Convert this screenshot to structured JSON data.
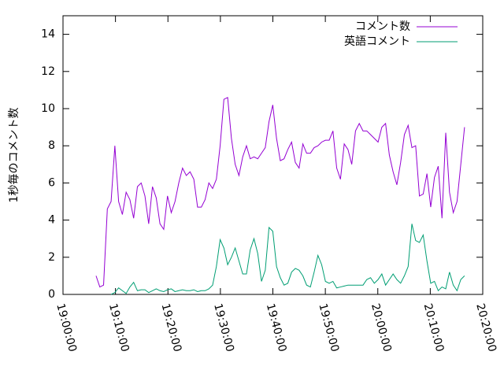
{
  "chart_data": {
    "type": "line",
    "ylabel": "1秒毎のコメント数",
    "x": [
      "19:06:18",
      "19:07:01",
      "19:07:44",
      "19:08:27",
      "19:09:10",
      "19:09:53",
      "19:10:36",
      "19:11:19",
      "19:12:02",
      "19:12:45",
      "19:13:28",
      "19:14:11",
      "19:14:54",
      "19:15:37",
      "19:16:20",
      "19:17:03",
      "19:17:46",
      "19:18:29",
      "19:19:12",
      "19:19:55",
      "19:20:38",
      "19:21:21",
      "19:22:04",
      "19:22:47",
      "19:23:30",
      "19:24:13",
      "19:24:56",
      "19:25:39",
      "19:26:22",
      "19:27:05",
      "19:27:48",
      "19:28:31",
      "19:29:14",
      "19:29:57",
      "19:30:40",
      "19:31:23",
      "19:32:06",
      "19:32:49",
      "19:33:32",
      "19:34:15",
      "19:34:58",
      "19:35:41",
      "19:36:24",
      "19:37:07",
      "19:37:50",
      "19:38:33",
      "19:39:16",
      "19:39:59",
      "19:40:42",
      "19:41:25",
      "19:42:08",
      "19:42:51",
      "19:43:34",
      "19:44:17",
      "19:45:00",
      "19:45:43",
      "19:46:26",
      "19:47:09",
      "19:47:52",
      "19:48:35",
      "19:49:18",
      "19:50:01",
      "19:50:44",
      "19:51:27",
      "19:52:10",
      "19:52:53",
      "19:53:36",
      "19:54:19",
      "19:55:02",
      "19:55:45",
      "19:56:28",
      "19:57:11",
      "19:57:54",
      "19:58:37",
      "19:59:20",
      "20:00:03",
      "20:00:46",
      "20:01:29",
      "20:02:12",
      "20:02:55",
      "20:03:38",
      "20:04:21",
      "20:05:04",
      "20:05:47",
      "20:06:30",
      "20:07:13",
      "20:07:56",
      "20:08:39",
      "20:09:22",
      "20:10:05",
      "20:10:48",
      "20:11:31",
      "20:12:14",
      "20:12:57",
      "20:13:40",
      "20:14:23",
      "20:15:06",
      "20:15:49",
      "20:16:32"
    ],
    "series": [
      {
        "name": "コメント数",
        "color": "#9400d3",
        "values": [
          1.0,
          0.4,
          0.5,
          4.6,
          5.0,
          8.0,
          5.0,
          4.3,
          5.5,
          5.1,
          4.1,
          5.8,
          6.0,
          5.3,
          3.8,
          5.8,
          5.2,
          3.8,
          3.5,
          5.3,
          4.4,
          5.0,
          6.0,
          6.8,
          6.4,
          6.6,
          6.2,
          4.7,
          4.7,
          5.1,
          6.0,
          5.7,
          6.2,
          8.0,
          10.5,
          10.6,
          8.4,
          7.0,
          6.4,
          7.4,
          8.0,
          7.3,
          7.4,
          7.3,
          7.6,
          7.9,
          9.3,
          10.2,
          8.4,
          7.2,
          7.3,
          7.8,
          8.2,
          7.1,
          6.8,
          8.1,
          7.6,
          7.6,
          7.9,
          8.0,
          8.2,
          8.3,
          8.3,
          8.8,
          6.8,
          6.2,
          8.1,
          7.8,
          7.0,
          8.8,
          9.2,
          8.8,
          8.8,
          8.6,
          8.4,
          8.2,
          9.0,
          9.2,
          7.5,
          6.6,
          5.9,
          7.1,
          8.6,
          9.1,
          7.9,
          8.0,
          5.3,
          5.4,
          6.5,
          4.7,
          6.3,
          6.9,
          4.1,
          8.7,
          5.5,
          4.4,
          5.0,
          7.0,
          9.0
        ]
      },
      {
        "name": "英語コメント",
        "color": "#009e73",
        "values": [
          null,
          null,
          null,
          null,
          0.0,
          0.1,
          0.35,
          0.2,
          0.05,
          0.4,
          0.65,
          0.2,
          0.25,
          0.25,
          0.1,
          0.2,
          0.3,
          0.2,
          0.15,
          0.25,
          0.3,
          0.15,
          0.2,
          0.25,
          0.2,
          0.2,
          0.25,
          0.15,
          0.2,
          0.2,
          0.3,
          0.5,
          1.5,
          2.95,
          2.5,
          1.6,
          2.0,
          2.5,
          1.8,
          1.1,
          1.1,
          2.4,
          3.0,
          2.2,
          0.7,
          1.3,
          3.6,
          3.4,
          1.5,
          0.9,
          0.5,
          0.6,
          1.2,
          1.4,
          1.3,
          1.0,
          0.5,
          0.4,
          1.2,
          2.1,
          1.6,
          0.7,
          0.6,
          0.7,
          0.35,
          0.4,
          0.45,
          0.5,
          0.5,
          0.5,
          0.5,
          0.5,
          0.8,
          0.9,
          0.6,
          0.8,
          1.1,
          0.5,
          0.8,
          1.1,
          0.8,
          0.6,
          1.0,
          1.5,
          3.8,
          2.9,
          2.8,
          3.2,
          1.8,
          0.6,
          0.7,
          0.2,
          0.4,
          0.3,
          1.2,
          0.5,
          0.2,
          0.8,
          1.0
        ]
      }
    ],
    "xlim": [
      "19:00:00",
      "20:20:00"
    ],
    "xticks": [
      "19:00:00",
      "19:10:00",
      "19:20:00",
      "19:30:00",
      "19:40:00",
      "19:50:00",
      "20:00:00",
      "20:10:00",
      "20:20:00"
    ],
    "ylim": [
      0,
      15
    ],
    "yticks": [
      0,
      2,
      4,
      6,
      8,
      10,
      12,
      14
    ],
    "grid": false,
    "legend": "top-right"
  }
}
